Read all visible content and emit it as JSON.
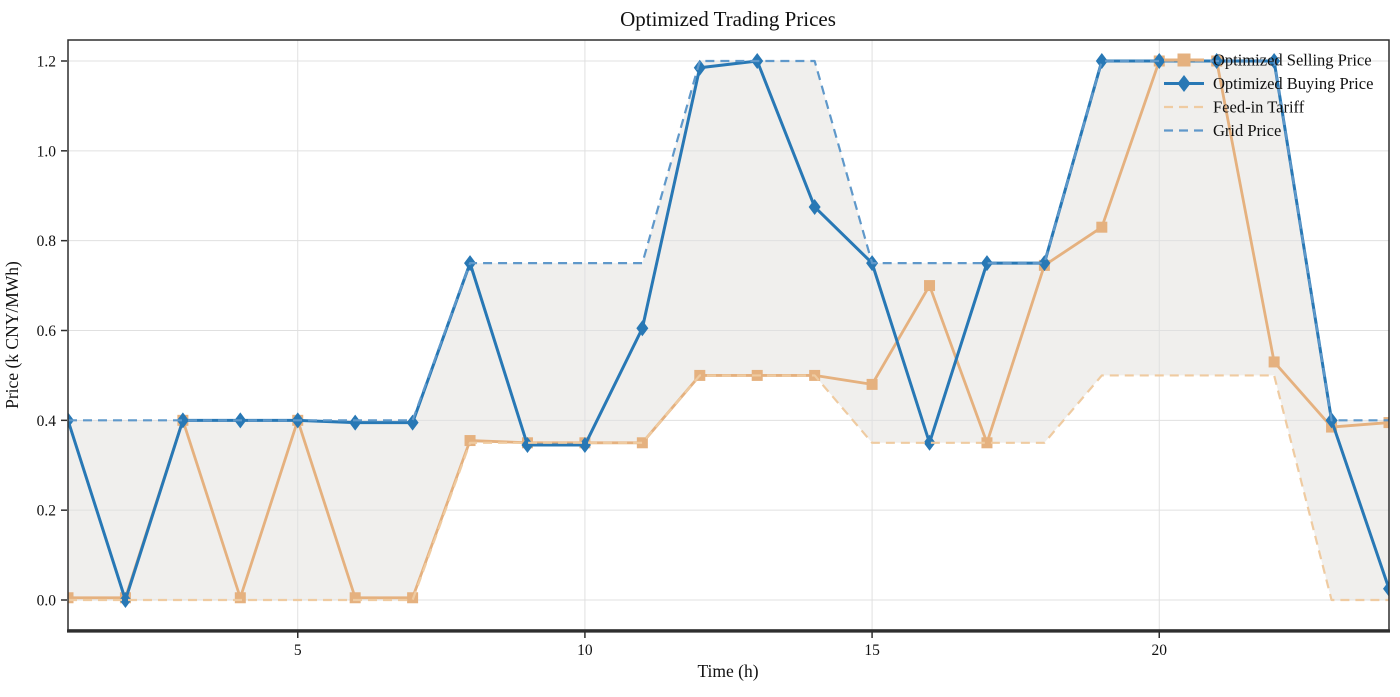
{
  "chart_data": {
    "type": "line",
    "title": "Optimized Trading Prices",
    "xlabel": "Time (h)",
    "ylabel": "Price (k CNY/MWh)",
    "x": [
      1,
      2,
      3,
      4,
      5,
      6,
      7,
      8,
      9,
      10,
      11,
      12,
      13,
      14,
      15,
      16,
      17,
      18,
      19,
      20,
      21,
      22,
      23,
      24
    ],
    "xlim": [
      1,
      24
    ],
    "ylim": [
      -0.067,
      1.247
    ],
    "xticks": [
      5,
      10,
      15,
      20
    ],
    "yticks": [
      0.0,
      0.2,
      0.4,
      0.6,
      0.8,
      1.0,
      1.2
    ],
    "grid": true,
    "legend_position": "upper right",
    "fill_between": {
      "upper": "Grid Price",
      "lower": "Feed-in Tariff",
      "color": "#F0EFED"
    },
    "series": [
      {
        "name": "Optimized Selling Price",
        "style": "solid",
        "marker": "square",
        "color": "#E5B17F",
        "values": [
          0.005,
          0.005,
          0.4,
          0.005,
          0.4,
          0.005,
          0.005,
          0.355,
          0.35,
          0.35,
          0.35,
          0.5,
          0.5,
          0.5,
          0.48,
          0.7,
          0.35,
          0.745,
          0.83,
          1.2,
          1.2,
          0.53,
          0.385,
          0.395
        ]
      },
      {
        "name": "Optimized Buying Price",
        "style": "solid",
        "marker": "diamond",
        "color": "#2878B5",
        "values": [
          0.4,
          0.0,
          0.4,
          0.4,
          0.4,
          0.395,
          0.395,
          0.75,
          0.345,
          0.345,
          0.605,
          1.185,
          1.2,
          0.875,
          0.75,
          0.35,
          0.75,
          0.75,
          1.2,
          1.2,
          1.2,
          1.2,
          0.4,
          0.025
        ]
      },
      {
        "name": "Feed-in Tariff",
        "style": "dashed",
        "marker": "none",
        "color": "#EFCBA1",
        "values": [
          0.0,
          0.0,
          0.0,
          0.0,
          0.0,
          0.0,
          0.0,
          0.35,
          0.35,
          0.35,
          0.35,
          0.5,
          0.5,
          0.5,
          0.35,
          0.35,
          0.35,
          0.35,
          0.5,
          0.5,
          0.5,
          0.5,
          0.0,
          0.0
        ]
      },
      {
        "name": "Grid Price",
        "style": "dashed",
        "marker": "none",
        "color": "#5F98CA",
        "values": [
          0.4,
          0.4,
          0.4,
          0.4,
          0.4,
          0.4,
          0.4,
          0.75,
          0.75,
          0.75,
          0.75,
          1.2,
          1.2,
          1.2,
          0.75,
          0.75,
          0.75,
          0.75,
          1.2,
          1.2,
          1.2,
          1.2,
          0.4,
          0.4
        ]
      }
    ],
    "colors": {
      "gridline": "#E0E0E0",
      "spine": "#2E2E2E",
      "text": "#111111"
    }
  }
}
